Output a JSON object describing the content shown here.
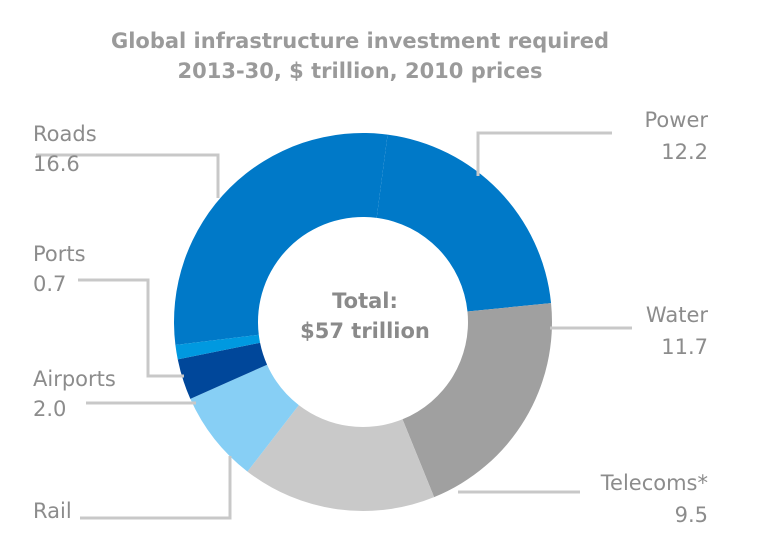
{
  "chart_data": {
    "type": "donut",
    "title": "Global infrastructure investment required",
    "subtitle": "2013-30, $ trillion, 2010 prices",
    "center_label": [
      "Total:",
      "$57 trillion"
    ],
    "categories": [
      "Roads",
      "Power",
      "Water",
      "Telecoms*",
      "Rail",
      "Airports",
      "Ports"
    ],
    "values": [
      16.6,
      12.2,
      11.7,
      9.5,
      4.5,
      2.0,
      0.7
    ],
    "value_labels": [
      "16.6",
      "12.2",
      "11.7",
      "9.5",
      null,
      "2.0",
      "0.7"
    ],
    "colors": [
      "#0079c8",
      "#0079c8",
      "#a0a0a0",
      "#c9c9c9",
      "#87cff5",
      "#00479a",
      "#0099e0"
    ]
  }
}
